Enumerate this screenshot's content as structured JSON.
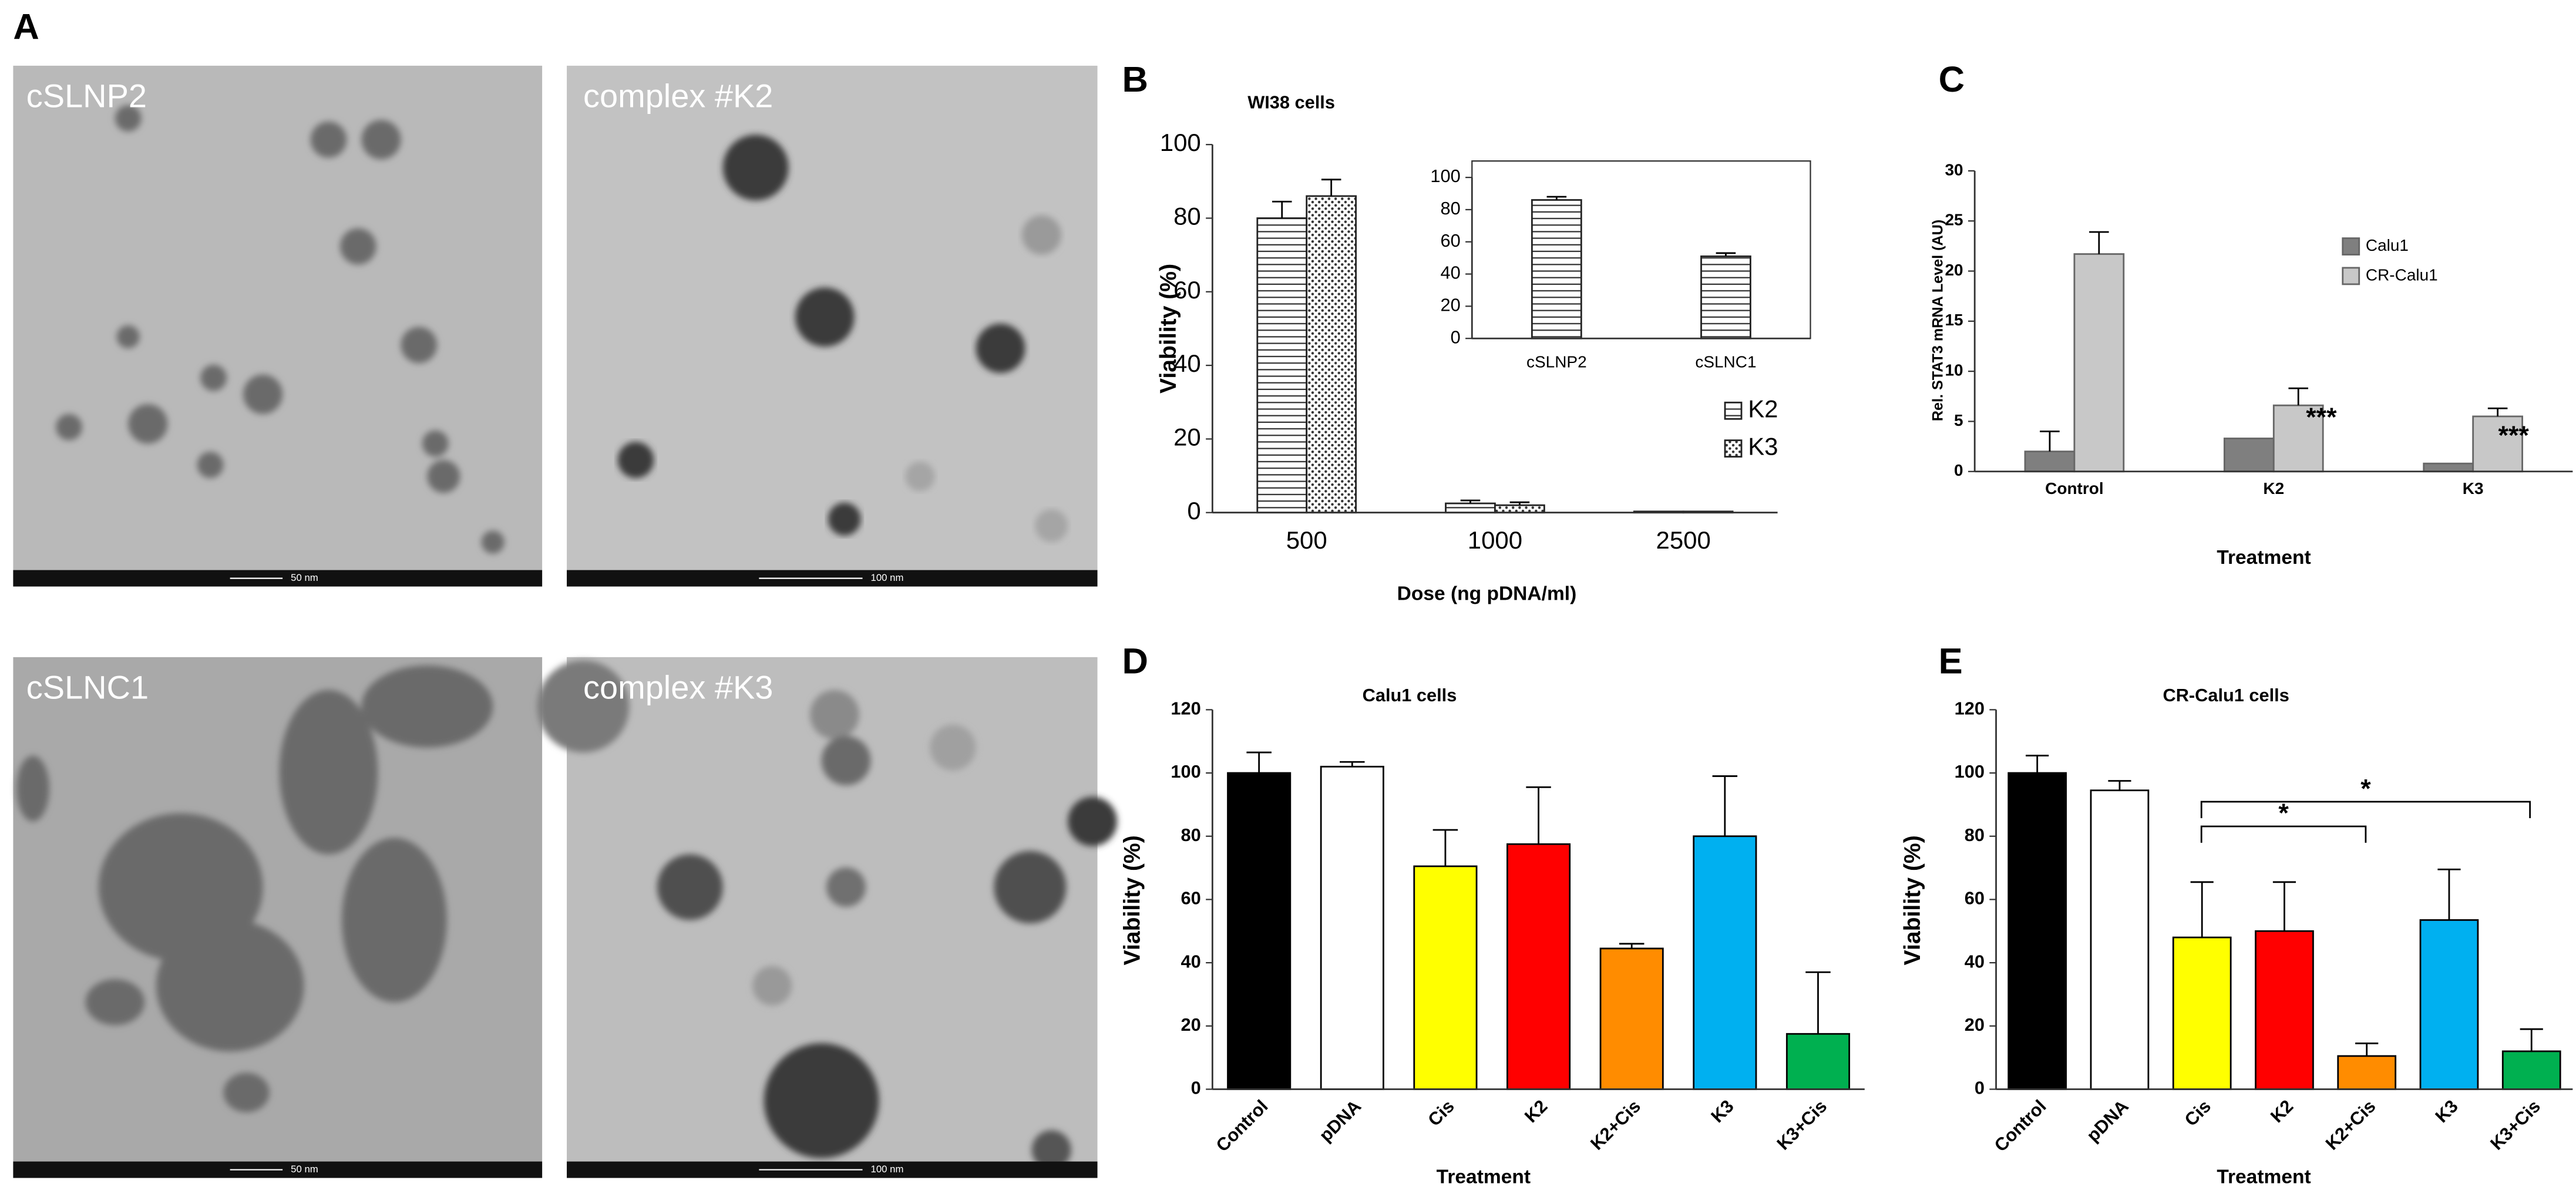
{
  "figure_a": {
    "label": "A",
    "images": [
      {
        "label": "cSLNP2",
        "scale": "50 nm"
      },
      {
        "label": "complex #K2",
        "scale": "100 nm"
      },
      {
        "label": "cSLNC1",
        "scale": "50 nm"
      },
      {
        "label": "complex #K3",
        "scale": "100 nm"
      }
    ]
  },
  "chart_data": [
    {
      "type": "bar",
      "panel": "B",
      "title": "WI38 cells",
      "xlabel": "Dose (ng pDNA/ml)",
      "ylabel": "Viability (%)",
      "categories": [
        "500",
        "1000",
        "2500"
      ],
      "series": [
        {
          "name": "K2",
          "color": "#333333",
          "hatch": "horizontal",
          "values": [
            80,
            2.5,
            0.3
          ],
          "errors": [
            4.5,
            0.8,
            null
          ]
        },
        {
          "name": "K3",
          "color": "#333333",
          "hatch": "dotted",
          "values": [
            86,
            2,
            0.3
          ],
          "errors": [
            4.5,
            0.8,
            null
          ]
        }
      ],
      "ylim": [
        0,
        100
      ],
      "yticks": [
        0,
        20,
        40,
        60,
        80,
        100
      ],
      "legend": "right"
    },
    {
      "type": "bar",
      "categories": [
        "cSLNP2",
        "cSLNC1"
      ],
      "series": [
        {
          "color": "#333333",
          "hatch": "horizontal",
          "values": [
            86,
            51
          ],
          "errors": [
            2,
            2
          ]
        }
      ],
      "ylim": [
        0,
        100
      ],
      "yticks": [
        0,
        20,
        40,
        60,
        80,
        100
      ]
    },
    {
      "type": "bar",
      "panel": "C",
      "xlabel": "Treatment",
      "ylabel": "Rel. STAT3 mRNA Level (AU)",
      "categories": [
        "Control",
        "K2",
        "K3"
      ],
      "series": [
        {
          "name": "Calu1",
          "color": "#7f7f7f",
          "values": [
            2,
            3.3,
            0.8
          ],
          "errors": [
            2,
            null,
            null
          ]
        },
        {
          "name": "CR-Calu1",
          "color": "#c8c8c8",
          "values": [
            21.7,
            6.6,
            5.5
          ],
          "errors": [
            2.2,
            1.7,
            0.8
          ]
        }
      ],
      "ylim": [
        0,
        30
      ],
      "yticks": [
        0,
        5,
        10,
        15,
        20,
        25,
        30
      ],
      "legend": "right",
      "annotations": [
        "***",
        "***"
      ]
    },
    {
      "type": "bar",
      "panel": "D",
      "title": "Calu1 cells",
      "xlabel": "Treatment",
      "ylabel": "Viability (%)",
      "categories": [
        "Control",
        "pDNA",
        "Cis",
        "K2",
        "K2+Cis",
        "K3",
        "K3+Cis"
      ],
      "values": [
        100,
        102,
        70.5,
        77.5,
        44.5,
        80,
        17.5
      ],
      "errors": [
        6.5,
        1.5,
        11.5,
        18,
        1.5,
        19,
        19.5
      ],
      "colors": [
        "#000000",
        "#ffffff",
        "#ffff00",
        "#ff0000",
        "#ff8c00",
        "#00b0f0",
        "#00b050"
      ],
      "ylim": [
        0,
        120
      ],
      "yticks": [
        0,
        20,
        40,
        60,
        80,
        100,
        120
      ]
    },
    {
      "type": "bar",
      "panel": "E",
      "title": "CR-Calu1 cells",
      "xlabel": "Treatment",
      "ylabel": "Viability (%)",
      "categories": [
        "Control",
        "pDNA",
        "Cis",
        "K2",
        "K2+Cis",
        "K3",
        "K3+Cis"
      ],
      "values": [
        100,
        94.5,
        48,
        50,
        10.5,
        53.5,
        12
      ],
      "errors": [
        5.5,
        3,
        17.5,
        15.5,
        4,
        16,
        7
      ],
      "colors": [
        "#000000",
        "#ffffff",
        "#ffff00",
        "#ff0000",
        "#ff8c00",
        "#00b0f0",
        "#00b050"
      ],
      "ylim": [
        0,
        120
      ],
      "yticks": [
        0,
        20,
        40,
        60,
        80,
        100,
        120
      ],
      "annotations": [
        "*",
        "*"
      ]
    }
  ]
}
